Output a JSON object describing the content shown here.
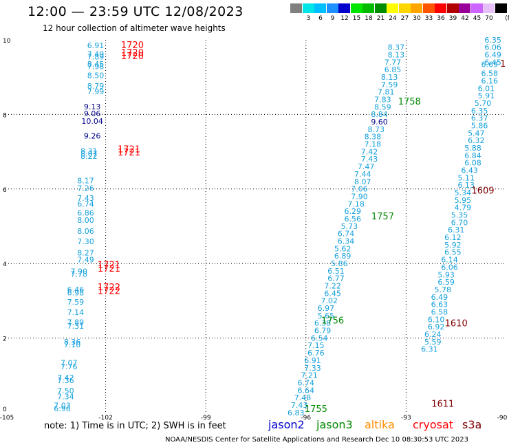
{
  "header": {
    "title": "12:00 — 23:59 UTC 12/08/2023",
    "subtitle": "12 hour collection of altimeter wave heights"
  },
  "scale": {
    "unit_label": "(ft)",
    "swatches": [
      {
        "color": "#808080",
        "label": ""
      },
      {
        "color": "#00e5e5",
        "label": "3"
      },
      {
        "color": "#00bfff",
        "label": "6"
      },
      {
        "color": "#1e90ff",
        "label": "9"
      },
      {
        "color": "#0000cd",
        "label": "12"
      },
      {
        "color": "#00e600",
        "label": "15"
      },
      {
        "color": "#00bb00",
        "label": "18"
      },
      {
        "color": "#008c00",
        "label": "21"
      },
      {
        "color": "#ffff00",
        "label": "24"
      },
      {
        "color": "#ffd700",
        "label": "27"
      },
      {
        "color": "#ffa500",
        "label": "30"
      },
      {
        "color": "#ff5500",
        "label": "33"
      },
      {
        "color": "#ff0000",
        "label": "36"
      },
      {
        "color": "#b00000",
        "label": "39"
      },
      {
        "color": "#990099",
        "label": "42"
      },
      {
        "color": "#cc66ff",
        "label": "45"
      },
      {
        "color": "#e8c0f8",
        "label": "70"
      },
      {
        "color": "#000000",
        "label": ""
      }
    ]
  },
  "colors": {
    "jason2": "#0000cc",
    "jason3": "#008800",
    "altika": "#ff8c00",
    "cryosat": "#ff0000",
    "s3a": "#800000",
    "swh_light": "#14a0dc",
    "swh_dark": "#00008b"
  },
  "legend": {
    "note": "note: 1) Time is in UTC; 2) SWH is in feet",
    "jason2": "jason2",
    "jason3": "jason3",
    "altika": "altika",
    "cryosat": "cryosat",
    "s3a": "s3a"
  },
  "footer": "NOAA/NESDIS Center for Satellite Applications and Research    Dec 10 08:30:53 UTC 2023",
  "chart_data": {
    "type": "scatter",
    "xlim": [
      -105,
      -90
    ],
    "ylim": [
      0,
      10
    ],
    "x_ticks": [
      {
        "v": -105,
        "label": "-105"
      },
      {
        "v": -102,
        "label": "-102"
      },
      {
        "v": -99,
        "label": "-99"
      },
      {
        "v": -96,
        "label": "-96"
      },
      {
        "v": -93,
        "label": "-93"
      },
      {
        "v": -90,
        "label": "-90"
      }
    ],
    "y_ticks": [
      {
        "v": 0,
        "label": "0"
      },
      {
        "v": 2,
        "label": "2"
      },
      {
        "v": 4,
        "label": "4"
      },
      {
        "v": 6,
        "label": "6"
      },
      {
        "v": 8,
        "label": "8"
      },
      {
        "v": 10,
        "label": "10"
      }
    ],
    "grid": "dotted",
    "time_labels": [
      {
        "x": -101.2,
        "y": 9.78,
        "text": "1720",
        "color": "#ff0000"
      },
      {
        "x": -101.2,
        "y": 9.58,
        "text": "1720",
        "color": "#ff0000"
      },
      {
        "x": -101.2,
        "y": 9.48,
        "text": "1720",
        "color": "#ff0000"
      },
      {
        "x": -101.3,
        "y": 6.98,
        "text": "1721",
        "color": "#ff0000"
      },
      {
        "x": -101.3,
        "y": 6.9,
        "text": "1721",
        "color": "#ff0000"
      },
      {
        "x": -101.9,
        "y": 3.88,
        "text": "1721",
        "color": "#ff0000"
      },
      {
        "x": -101.9,
        "y": 3.78,
        "text": "1721",
        "color": "#ff0000"
      },
      {
        "x": -101.9,
        "y": 3.28,
        "text": "1722",
        "color": "#ff0000"
      },
      {
        "x": -101.9,
        "y": 3.18,
        "text": "1722",
        "color": "#ff0000"
      },
      {
        "x": -92.9,
        "y": 8.27,
        "text": "1758",
        "color": "#008800"
      },
      {
        "x": -93.7,
        "y": 5.18,
        "text": "1757",
        "color": "#008800"
      },
      {
        "x": -95.2,
        "y": 2.39,
        "text": "1756",
        "color": "#008800"
      },
      {
        "x": -95.7,
        "y": 0.02,
        "text": "1755",
        "color": "#008800"
      },
      {
        "x": -90.7,
        "y": 5.88,
        "text": "1609",
        "color": "#800000"
      },
      {
        "x": -91.5,
        "y": 2.32,
        "text": "1610",
        "color": "#800000"
      },
      {
        "x": -91.9,
        "y": 0.16,
        "text": "1611",
        "color": "#800000"
      },
      {
        "x": -90.1,
        "y": 9.28,
        "text": "1",
        "color": "#800000"
      }
    ],
    "series": [
      {
        "name": "cryosat",
        "points": [
          {
            "x": -102.3,
            "y": 9.78,
            "v": "6.91"
          },
          {
            "x": -102.3,
            "y": 9.55,
            "v": "7.49"
          },
          {
            "x": -102.3,
            "y": 9.47,
            "v": "7.89"
          },
          {
            "x": -102.3,
            "y": 9.28,
            "v": "8.45"
          },
          {
            "x": -102.3,
            "y": 9.22,
            "v": "7.98"
          },
          {
            "x": -102.3,
            "y": 8.98,
            "v": "8.50"
          },
          {
            "x": -102.3,
            "y": 8.69,
            "v": "8.79"
          },
          {
            "x": -102.3,
            "y": 8.54,
            "v": "7.99"
          },
          {
            "x": -102.4,
            "y": 8.14,
            "v": "9.13",
            "dark": true
          },
          {
            "x": -102.4,
            "y": 7.95,
            "v": "9.06",
            "dark": true
          },
          {
            "x": -102.4,
            "y": 7.75,
            "v": "10.04",
            "dark": true
          },
          {
            "x": -102.4,
            "y": 7.35,
            "v": "9.26",
            "dark": true
          },
          {
            "x": -102.5,
            "y": 6.95,
            "v": "8.31"
          },
          {
            "x": -102.5,
            "y": 6.87,
            "v": "8.07"
          },
          {
            "x": -102.5,
            "y": 6.81,
            "v": "8.22"
          },
          {
            "x": -102.6,
            "y": 6.15,
            "v": "8.17"
          },
          {
            "x": -102.6,
            "y": 5.95,
            "v": "7.26"
          },
          {
            "x": -102.6,
            "y": 5.68,
            "v": "7.43"
          },
          {
            "x": -102.6,
            "y": 5.53,
            "v": "6.74"
          },
          {
            "x": -102.6,
            "y": 5.29,
            "v": "6.86"
          },
          {
            "x": -102.6,
            "y": 5.09,
            "v": "8.00"
          },
          {
            "x": -102.6,
            "y": 4.8,
            "v": "8.06"
          },
          {
            "x": -102.6,
            "y": 4.52,
            "v": "7.30"
          },
          {
            "x": -102.6,
            "y": 4.22,
            "v": "8.27"
          },
          {
            "x": -102.6,
            "y": 4.03,
            "v": "7.49"
          },
          {
            "x": -102.8,
            "y": 3.72,
            "v": "7.90"
          },
          {
            "x": -102.8,
            "y": 3.64,
            "v": "7.78"
          },
          {
            "x": -102.9,
            "y": 3.23,
            "v": "6.46"
          },
          {
            "x": -102.9,
            "y": 3.15,
            "v": "6.98"
          },
          {
            "x": -102.9,
            "y": 2.9,
            "v": "7.59"
          },
          {
            "x": -102.9,
            "y": 2.62,
            "v": "7.14"
          },
          {
            "x": -102.9,
            "y": 2.35,
            "v": "7.89"
          },
          {
            "x": -102.9,
            "y": 2.25,
            "v": "7.31"
          },
          {
            "x": -103.0,
            "y": 1.83,
            "v": "8.36"
          },
          {
            "x": -103.0,
            "y": 1.75,
            "v": "7.10"
          },
          {
            "x": -103.1,
            "y": 1.26,
            "v": "7.07"
          },
          {
            "x": -103.1,
            "y": 1.16,
            "v": "7.76"
          },
          {
            "x": -103.2,
            "y": 0.87,
            "v": "7.42"
          },
          {
            "x": -103.2,
            "y": 0.79,
            "v": "7.36"
          },
          {
            "x": -103.2,
            "y": 0.52,
            "v": "7.50"
          },
          {
            "x": -103.2,
            "y": 0.36,
            "v": "7.34"
          },
          {
            "x": -103.3,
            "y": 0.12,
            "v": "7.03"
          },
          {
            "x": -103.3,
            "y": 0.04,
            "v": "6.96"
          }
        ]
      },
      {
        "name": "jason3",
        "points": [
          {
            "x": -93.3,
            "y": 9.73,
            "v": "8.37"
          },
          {
            "x": -93.3,
            "y": 9.53,
            "v": "8.13"
          },
          {
            "x": -93.4,
            "y": 9.33,
            "v": "7.77"
          },
          {
            "x": -93.4,
            "y": 9.13,
            "v": "6.85"
          },
          {
            "x": -93.5,
            "y": 8.93,
            "v": "8.13"
          },
          {
            "x": -93.5,
            "y": 8.73,
            "v": "7.59"
          },
          {
            "x": -93.6,
            "y": 8.53,
            "v": "7.81"
          },
          {
            "x": -93.7,
            "y": 8.33,
            "v": "7.83"
          },
          {
            "x": -93.7,
            "y": 8.13,
            "v": "8.59"
          },
          {
            "x": -93.8,
            "y": 7.93,
            "v": "8.84"
          },
          {
            "x": -93.8,
            "y": 7.73,
            "v": "9.60",
            "dark": true
          },
          {
            "x": -93.9,
            "y": 7.53,
            "v": "8.73"
          },
          {
            "x": -94.0,
            "y": 7.33,
            "v": "8.38"
          },
          {
            "x": -94.0,
            "y": 7.13,
            "v": "7.18"
          },
          {
            "x": -94.1,
            "y": 6.93,
            "v": "7.42"
          },
          {
            "x": -94.1,
            "y": 6.73,
            "v": "7.43"
          },
          {
            "x": -94.2,
            "y": 6.53,
            "v": "7.47"
          },
          {
            "x": -94.3,
            "y": 6.33,
            "v": "7.44"
          },
          {
            "x": -94.3,
            "y": 6.13,
            "v": "8.07"
          },
          {
            "x": -94.4,
            "y": 5.93,
            "v": "7.06"
          },
          {
            "x": -94.4,
            "y": 5.73,
            "v": "7.90"
          },
          {
            "x": -94.5,
            "y": 5.53,
            "v": "7.18"
          },
          {
            "x": -94.6,
            "y": 5.33,
            "v": "6.29"
          },
          {
            "x": -94.6,
            "y": 5.13,
            "v": "6.56"
          },
          {
            "x": -94.7,
            "y": 4.93,
            "v": "5.73"
          },
          {
            "x": -94.8,
            "y": 4.73,
            "v": "6.74"
          },
          {
            "x": -94.8,
            "y": 4.53,
            "v": "6.34"
          },
          {
            "x": -94.9,
            "y": 4.33,
            "v": "5.62"
          },
          {
            "x": -94.9,
            "y": 4.13,
            "v": "6.89"
          },
          {
            "x": -95.0,
            "y": 3.93,
            "v": "5.86"
          },
          {
            "x": -95.1,
            "y": 3.73,
            "v": "6.51"
          },
          {
            "x": -95.1,
            "y": 3.53,
            "v": "6.77"
          },
          {
            "x": -95.2,
            "y": 3.33,
            "v": "7.22"
          },
          {
            "x": -95.2,
            "y": 3.13,
            "v": "6.45"
          },
          {
            "x": -95.3,
            "y": 2.93,
            "v": "7.02"
          },
          {
            "x": -95.4,
            "y": 2.73,
            "v": "6.97"
          },
          {
            "x": -95.4,
            "y": 2.53,
            "v": "5.65"
          },
          {
            "x": -95.5,
            "y": 2.33,
            "v": "6.38"
          },
          {
            "x": -95.5,
            "y": 2.13,
            "v": "6.79"
          },
          {
            "x": -95.6,
            "y": 1.93,
            "v": "6.54"
          },
          {
            "x": -95.7,
            "y": 1.73,
            "v": "7.15"
          },
          {
            "x": -95.7,
            "y": 1.53,
            "v": "6.76"
          },
          {
            "x": -95.8,
            "y": 1.33,
            "v": "6.91"
          },
          {
            "x": -95.8,
            "y": 1.13,
            "v": "7.33"
          },
          {
            "x": -95.9,
            "y": 0.93,
            "v": "7.21"
          },
          {
            "x": -96.0,
            "y": 0.73,
            "v": "6.74"
          },
          {
            "x": -96.0,
            "y": 0.53,
            "v": "6.64"
          },
          {
            "x": -96.1,
            "y": 0.33,
            "v": "7.48"
          },
          {
            "x": -96.2,
            "y": 0.13,
            "v": "7.43"
          },
          {
            "x": -96.3,
            "y": -0.07,
            "v": "6.83"
          }
        ]
      },
      {
        "name": "s3a",
        "points": [
          {
            "x": -90.4,
            "y": 9.93,
            "v": "6.35"
          },
          {
            "x": -90.4,
            "y": 9.73,
            "v": "6.06"
          },
          {
            "x": -90.4,
            "y": 9.53,
            "v": "6.49"
          },
          {
            "x": -90.4,
            "y": 9.33,
            "v": "6.45"
          },
          {
            "x": -90.5,
            "y": 9.27,
            "v": "6.69"
          },
          {
            "x": -90.5,
            "y": 9.03,
            "v": "6.58"
          },
          {
            "x": -90.5,
            "y": 8.83,
            "v": "6.16"
          },
          {
            "x": -90.6,
            "y": 8.63,
            "v": "6.01"
          },
          {
            "x": -90.6,
            "y": 8.43,
            "v": "5.91"
          },
          {
            "x": -90.7,
            "y": 8.23,
            "v": "5.70"
          },
          {
            "x": -90.8,
            "y": 8.03,
            "v": "6.35"
          },
          {
            "x": -90.8,
            "y": 7.83,
            "v": "6.37"
          },
          {
            "x": -90.8,
            "y": 7.63,
            "v": "5.86"
          },
          {
            "x": -90.9,
            "y": 7.43,
            "v": "5.47"
          },
          {
            "x": -90.9,
            "y": 7.23,
            "v": "6.32"
          },
          {
            "x": -91.0,
            "y": 7.03,
            "v": "5.88"
          },
          {
            "x": -91.0,
            "y": 6.83,
            "v": "6.84"
          },
          {
            "x": -91.0,
            "y": 6.63,
            "v": "6.08"
          },
          {
            "x": -91.1,
            "y": 6.43,
            "v": "6.43"
          },
          {
            "x": -91.2,
            "y": 6.23,
            "v": "5.11"
          },
          {
            "x": -91.2,
            "y": 6.03,
            "v": "6.13"
          },
          {
            "x": -91.3,
            "y": 5.83,
            "v": "5.34"
          },
          {
            "x": -91.3,
            "y": 5.63,
            "v": "5.95"
          },
          {
            "x": -91.3,
            "y": 5.43,
            "v": "4.79"
          },
          {
            "x": -91.4,
            "y": 5.23,
            "v": "5.35"
          },
          {
            "x": -91.4,
            "y": 5.03,
            "v": "6.70"
          },
          {
            "x": -91.5,
            "y": 4.83,
            "v": "6.31"
          },
          {
            "x": -91.6,
            "y": 4.63,
            "v": "6.12"
          },
          {
            "x": -91.6,
            "y": 4.43,
            "v": "5.92"
          },
          {
            "x": -91.6,
            "y": 4.23,
            "v": "6.55"
          },
          {
            "x": -91.7,
            "y": 4.03,
            "v": "6.14"
          },
          {
            "x": -91.7,
            "y": 3.83,
            "v": "6.06"
          },
          {
            "x": -91.8,
            "y": 3.63,
            "v": "5.93"
          },
          {
            "x": -91.8,
            "y": 3.43,
            "v": "6.59"
          },
          {
            "x": -91.9,
            "y": 3.23,
            "v": "5.78"
          },
          {
            "x": -92.0,
            "y": 3.03,
            "v": "6.49"
          },
          {
            "x": -92.0,
            "y": 2.83,
            "v": "6.63"
          },
          {
            "x": -92.0,
            "y": 2.63,
            "v": "6.58"
          },
          {
            "x": -92.1,
            "y": 2.43,
            "v": "6.10"
          },
          {
            "x": -92.1,
            "y": 2.23,
            "v": "6.92"
          },
          {
            "x": -92.2,
            "y": 2.03,
            "v": "6.24"
          },
          {
            "x": -92.2,
            "y": 1.83,
            "v": "5.59"
          },
          {
            "x": -92.3,
            "y": 1.63,
            "v": "6.31"
          }
        ]
      }
    ]
  }
}
